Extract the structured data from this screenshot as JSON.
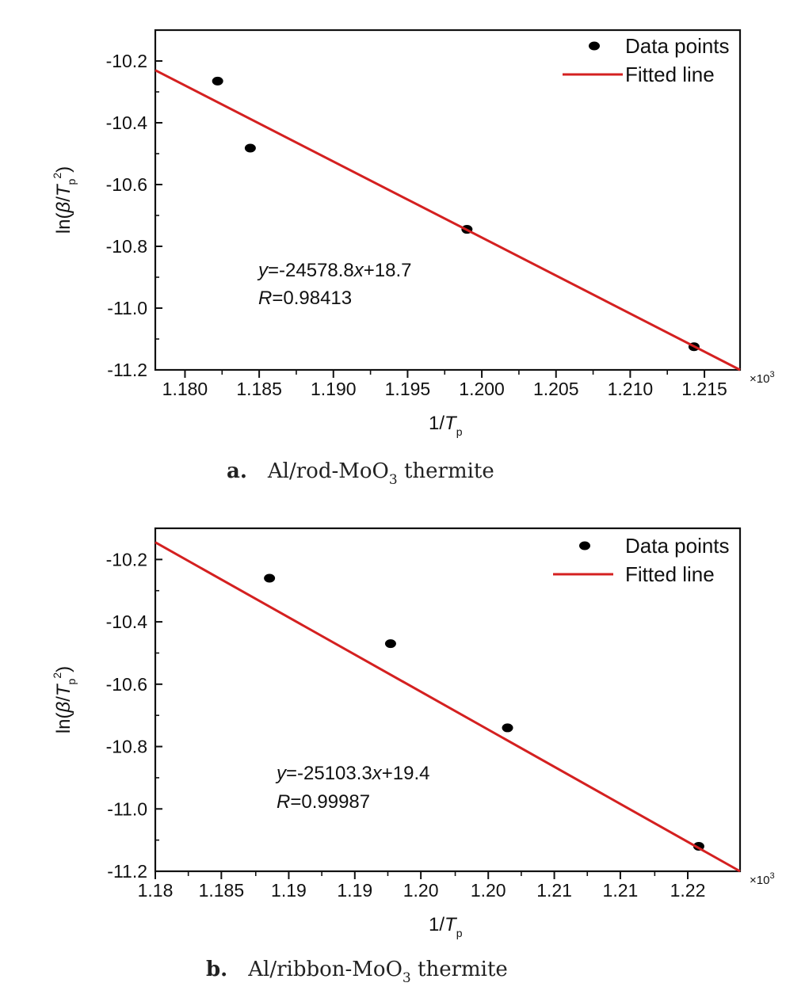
{
  "chart_data": [
    {
      "type": "scatter",
      "panel": "a",
      "caption": {
        "letter": "a.",
        "pre": "Al/rod-MoO",
        "sub": "3",
        "post": " thermite"
      },
      "xlabel": {
        "pre": "1/",
        "var": "T",
        "sub": "p"
      },
      "ylabel": {
        "pre": "ln(",
        "greek": "β",
        "slash": "/",
        "var": "T",
        "sub": "p",
        "sup": "2",
        "post": ")"
      },
      "xlim": [
        1.178,
        1.2174
      ],
      "ylim": [
        -11.2,
        -10.1
      ],
      "x_multiplier": {
        "base": "×10",
        "exp": "3"
      },
      "xticks": [
        1.18,
        1.185,
        1.19,
        1.195,
        1.2,
        1.205,
        1.21,
        1.215
      ],
      "xtick_labels": [
        "1.180",
        "1.185",
        "1.190",
        "1.195",
        "1.200",
        "1.205",
        "1.210",
        "1.215"
      ],
      "yticks": [
        -10.2,
        -10.4,
        -10.6,
        -10.8,
        -11.0,
        -11.2
      ],
      "ytick_labels": [
        "-10.2",
        "-10.4",
        "-10.6",
        "-10.8",
        "-11.0",
        "-11.2"
      ],
      "series": [
        {
          "name": "Data points",
          "kind": "points",
          "color": "#000000",
          "x": [
            1.1822,
            1.1844,
            1.199,
            1.2143
          ],
          "y": [
            -10.265,
            -10.482,
            -10.745,
            -11.125
          ]
        },
        {
          "name": "Fitted line",
          "kind": "line",
          "color": "#d42020",
          "x": [
            1.178,
            1.2174
          ],
          "y": [
            -10.23,
            -11.2
          ]
        }
      ],
      "equation": {
        "y": "y",
        "rhs": "=-24578.8",
        "x": "x",
        "tail": "+18.7"
      },
      "r_text": {
        "r": "R",
        "value": "=0.98413"
      },
      "legend_position": "top-right"
    },
    {
      "type": "scatter",
      "panel": "b",
      "caption": {
        "letter": "b.",
        "pre": "Al/ribbon-MoO",
        "sub": "3",
        "post": " thermite"
      },
      "xlabel": {
        "pre": "1/",
        "var": "T",
        "sub": "p"
      },
      "ylabel": {
        "pre": "ln(",
        "greek": "β",
        "slash": "/",
        "var": "T",
        "sub": "p",
        "sup": "2",
        "post": ")"
      },
      "xlim": [
        1.18,
        1.2225
      ],
      "ylim": [
        -11.2,
        -10.1
      ],
      "x_multiplier": {
        "base": "×10",
        "exp": "3"
      },
      "xticks": [
        1.18,
        1.1848,
        1.1897,
        1.1945,
        1.1993,
        1.2042,
        1.209,
        1.2138,
        1.2187
      ],
      "xtick_labels": [
        "1.18",
        "1.185",
        "1.19",
        "1.19",
        "1.20",
        "1.20",
        "1.21",
        "1.21",
        "1.22"
      ],
      "yticks": [
        -10.2,
        -10.4,
        -10.6,
        -10.8,
        -11.0,
        -11.2
      ],
      "ytick_labels": [
        "-10.2",
        "-10.4",
        "-10.6",
        "-10.8",
        "-11.0",
        "-11.2"
      ],
      "series": [
        {
          "name": "Data points",
          "kind": "points",
          "color": "#000000",
          "x": [
            1.1883,
            1.1971,
            1.2056,
            1.2195
          ],
          "y": [
            -10.26,
            -10.47,
            -10.74,
            -11.12
          ]
        },
        {
          "name": "Fitted line",
          "kind": "line",
          "color": "#d42020",
          "x": [
            1.18,
            1.2225
          ],
          "y": [
            -10.145,
            -11.2
          ]
        }
      ],
      "equation": {
        "y": "y",
        "rhs": "=-25103.3",
        "x": "x",
        "tail": "+19.4"
      },
      "r_text": {
        "r": "R",
        "value": "=0.99987"
      },
      "legend_position": "top-right"
    }
  ]
}
